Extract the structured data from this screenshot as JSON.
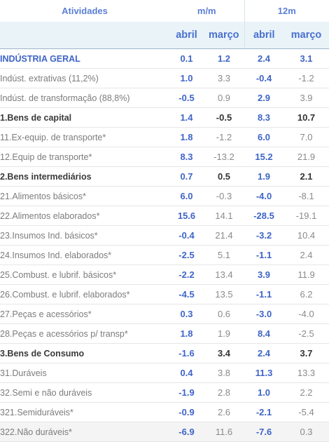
{
  "headers": {
    "col_activity": "Atividades",
    "group_mm": "m/m",
    "group_12m": "12m",
    "sub": [
      "abril",
      "março",
      "abril",
      "março"
    ]
  },
  "rows": [
    {
      "label": "INDÚSTRIA GERAL",
      "mm_abril": "0.1",
      "mm_marco": "1.2",
      "a12_abril": "2.4",
      "a12_marco": "3.1"
    },
    {
      "label": "Indúst. extrativas (11,2%)",
      "mm_abril": "1.0",
      "mm_marco": "3.3",
      "a12_abril": "-0.4",
      "a12_marco": "-1.2"
    },
    {
      "label": "Indúst. de transformação (88,8%)",
      "mm_abril": "-0.5",
      "mm_marco": "0.9",
      "a12_abril": "2.9",
      "a12_marco": "3.9"
    },
    {
      "label": "1.Bens de capital",
      "mm_abril": "1.4",
      "mm_marco": "-0.5",
      "a12_abril": "8.3",
      "a12_marco": "10.7"
    },
    {
      "label": "11.Ex-equip. de transporte*",
      "mm_abril": "1.8",
      "mm_marco": "-1.2",
      "a12_abril": "6.0",
      "a12_marco": "7.0"
    },
    {
      "label": "12.Equip de transporte*",
      "mm_abril": "8.3",
      "mm_marco": "-13.2",
      "a12_abril": "15.2",
      "a12_marco": "21.9"
    },
    {
      "label": "2.Bens intermediários",
      "mm_abril": "0.7",
      "mm_marco": "0.5",
      "a12_abril": "1.9",
      "a12_marco": "2.1"
    },
    {
      "label": "21.Alimentos básicos*",
      "mm_abril": "6.0",
      "mm_marco": "-0.3",
      "a12_abril": "-4.0",
      "a12_marco": "-8.1"
    },
    {
      "label": "22.Alimentos elaborados*",
      "mm_abril": "15.6",
      "mm_marco": "14.1",
      "a12_abril": "-28.5",
      "a12_marco": "-19.1"
    },
    {
      "label": "23.Insumos Ind. básicos*",
      "mm_abril": "-0.4",
      "mm_marco": "21.4",
      "a12_abril": "-3.2",
      "a12_marco": "10.4"
    },
    {
      "label": "24.Insumos Ind. elaborados*",
      "mm_abril": "-2.5",
      "mm_marco": "5.1",
      "a12_abril": "-1.1",
      "a12_marco": "2.4"
    },
    {
      "label": "25.Combust. e lubrif. básicos*",
      "mm_abril": "-2.2",
      "mm_marco": "13.4",
      "a12_abril": "3.9",
      "a12_marco": "11.9"
    },
    {
      "label": "26.Combust. e lubrif. elaborados*",
      "mm_abril": "-4.5",
      "mm_marco": "13.5",
      "a12_abril": "-1.1",
      "a12_marco": "6.2"
    },
    {
      "label": "27.Peças e acessórios*",
      "mm_abril": "0.3",
      "mm_marco": "0.6",
      "a12_abril": "-3.0",
      "a12_marco": "-4.0"
    },
    {
      "label": "28.Peças e acessórios p/ transp*",
      "mm_abril": "1.8",
      "mm_marco": "1.9",
      "a12_abril": "8.4",
      "a12_marco": "-2.5"
    },
    {
      "label": "3.Bens de Consumo",
      "mm_abril": "-1.6",
      "mm_marco": "3.4",
      "a12_abril": "2.4",
      "a12_marco": "3.7"
    },
    {
      "label": "31.Duráveis",
      "mm_abril": "0.4",
      "mm_marco": "3.8",
      "a12_abril": "11.3",
      "a12_marco": "13.3"
    },
    {
      "label": "32.Semi e não duráveis",
      "mm_abril": "-1.9",
      "mm_marco": "2.8",
      "a12_abril": "1.0",
      "a12_marco": "2.2"
    },
    {
      "label": "321.Semiduráveis*",
      "mm_abril": "-0.9",
      "mm_marco": "2.6",
      "a12_abril": "-2.1",
      "a12_marco": "-5.4"
    },
    {
      "label": "322.Não duráveis*",
      "mm_abril": "-6.9",
      "mm_marco": "11.6",
      "a12_abril": "-7.6",
      "a12_marco": "0.3"
    }
  ]
}
